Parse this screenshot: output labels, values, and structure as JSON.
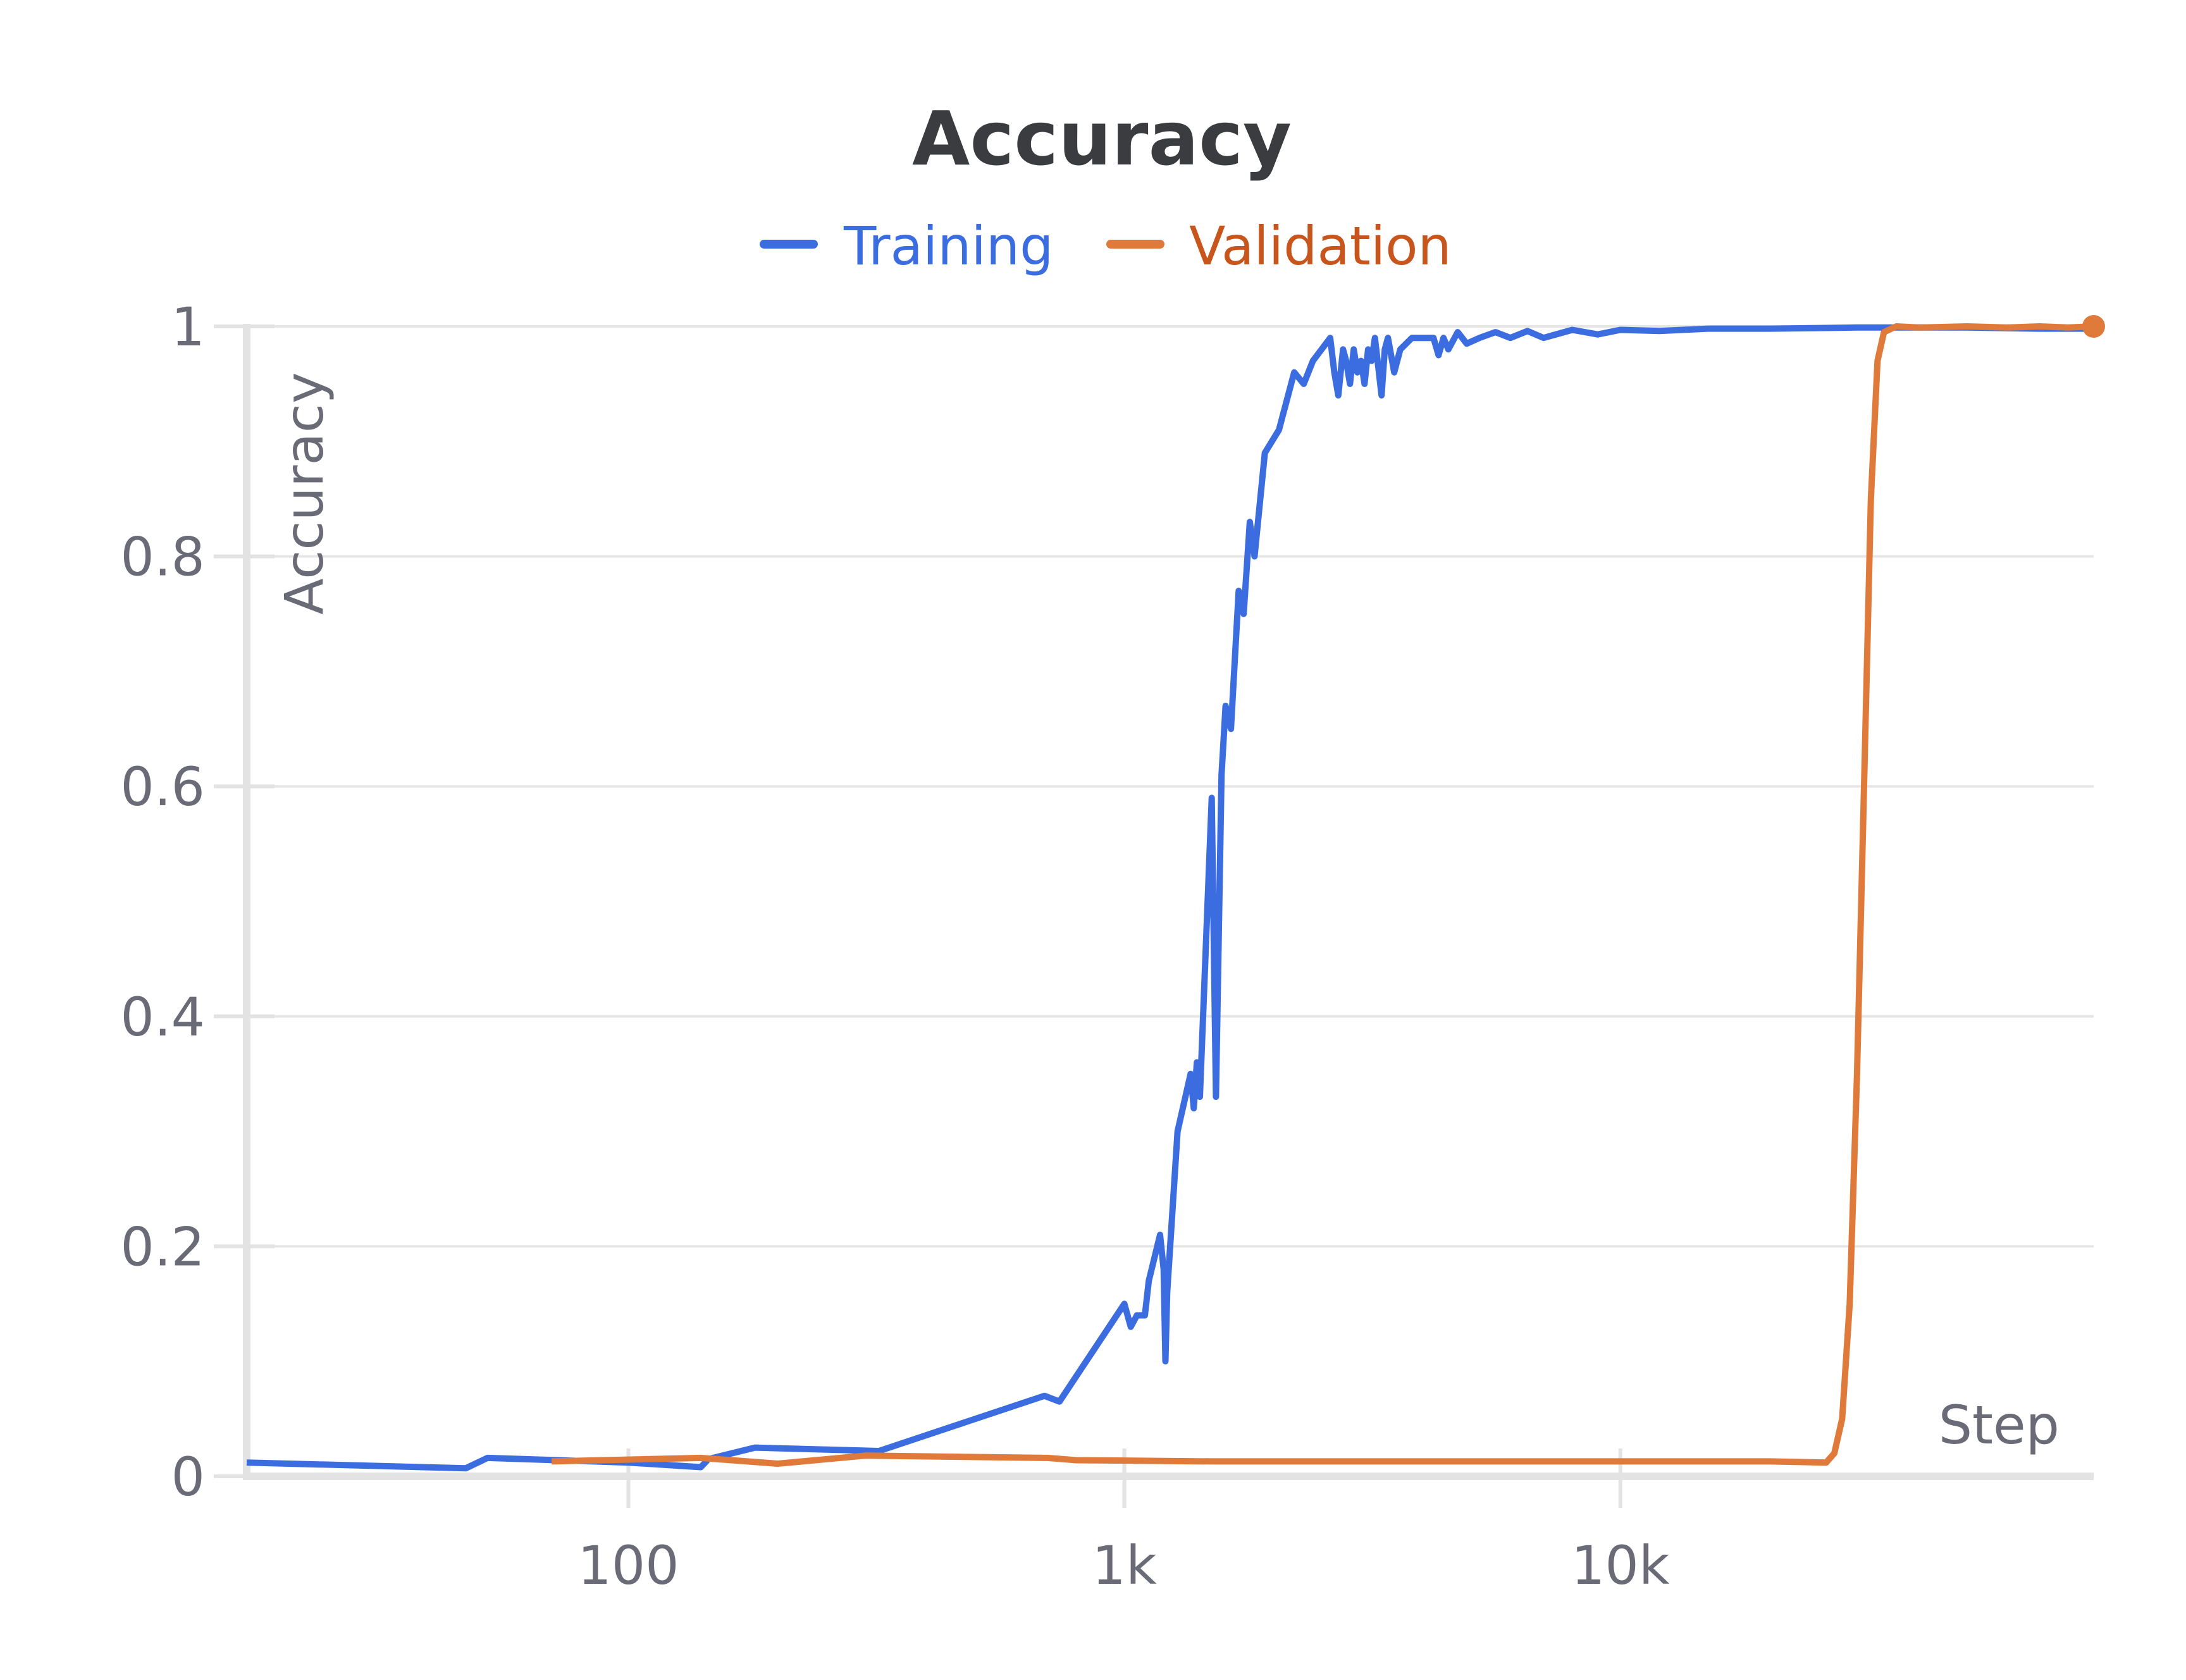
{
  "chart_data": {
    "type": "line",
    "title": "Accuracy",
    "xlabel": "Step",
    "ylabel": "Accuracy",
    "x_scale": "log",
    "xlim": [
      17,
      90000
    ],
    "ylim": [
      0,
      1
    ],
    "x_ticks": [
      {
        "value": 100,
        "label": "100"
      },
      {
        "value": 1000,
        "label": "1k"
      },
      {
        "value": 10000,
        "label": "10k"
      }
    ],
    "y_ticks": [
      {
        "value": 0,
        "label": "0"
      },
      {
        "value": 0.2,
        "label": "0.2"
      },
      {
        "value": 0.4,
        "label": "0.4"
      },
      {
        "value": 0.6,
        "label": "0.6"
      },
      {
        "value": 0.8,
        "label": "0.8"
      },
      {
        "value": 1,
        "label": "1"
      }
    ],
    "grid": true,
    "legend_position": "top-center",
    "series": [
      {
        "name": "Training",
        "color": "#3b6de0",
        "points": [
          [
            17,
            0.012
          ],
          [
            47,
            0.007
          ],
          [
            52,
            0.016
          ],
          [
            100,
            0.012
          ],
          [
            140,
            0.008
          ],
          [
            145,
            0.015
          ],
          [
            180,
            0.025
          ],
          [
            320,
            0.022
          ],
          [
            690,
            0.07
          ],
          [
            740,
            0.065
          ],
          [
            1000,
            0.15
          ],
          [
            1030,
            0.13
          ],
          [
            1060,
            0.14
          ],
          [
            1100,
            0.14
          ],
          [
            1120,
            0.17
          ],
          [
            1180,
            0.21
          ],
          [
            1200,
            0.18
          ],
          [
            1210,
            0.1
          ],
          [
            1220,
            0.16
          ],
          [
            1280,
            0.3
          ],
          [
            1360,
            0.35
          ],
          [
            1380,
            0.32
          ],
          [
            1400,
            0.36
          ],
          [
            1420,
            0.33
          ],
          [
            1500,
            0.59
          ],
          [
            1530,
            0.33
          ],
          [
            1570,
            0.61
          ],
          [
            1600,
            0.67
          ],
          [
            1640,
            0.65
          ],
          [
            1700,
            0.77
          ],
          [
            1740,
            0.75
          ],
          [
            1790,
            0.83
          ],
          [
            1830,
            0.8
          ],
          [
            1920,
            0.89
          ],
          [
            2050,
            0.91
          ],
          [
            2200,
            0.96
          ],
          [
            2300,
            0.95
          ],
          [
            2400,
            0.97
          ],
          [
            2600,
            0.99
          ],
          [
            2650,
            0.96
          ],
          [
            2700,
            0.94
          ],
          [
            2760,
            0.98
          ],
          [
            2800,
            0.97
          ],
          [
            2850,
            0.95
          ],
          [
            2900,
            0.98
          ],
          [
            2950,
            0.96
          ],
          [
            3000,
            0.97
          ],
          [
            3050,
            0.95
          ],
          [
            3100,
            0.98
          ],
          [
            3150,
            0.97
          ],
          [
            3200,
            0.99
          ],
          [
            3300,
            0.94
          ],
          [
            3350,
            0.98
          ],
          [
            3400,
            0.99
          ],
          [
            3500,
            0.96
          ],
          [
            3600,
            0.98
          ],
          [
            3800,
            0.99
          ],
          [
            4200,
            0.99
          ],
          [
            4300,
            0.975
          ],
          [
            4400,
            0.99
          ],
          [
            4500,
            0.98
          ],
          [
            4700,
            0.995
          ],
          [
            4900,
            0.985
          ],
          [
            5200,
            0.99
          ],
          [
            5600,
            0.995
          ],
          [
            6000,
            0.99
          ],
          [
            6500,
            0.996
          ],
          [
            7000,
            0.99
          ],
          [
            8000,
            0.997
          ],
          [
            9000,
            0.993
          ],
          [
            10000,
            0.997
          ],
          [
            12000,
            0.996
          ],
          [
            15000,
            0.998
          ],
          [
            20000,
            0.998
          ],
          [
            30000,
            0.999
          ],
          [
            50000,
            0.999
          ],
          [
            70000,
            0.998
          ],
          [
            90000,
            0.998
          ]
        ]
      },
      {
        "name": "Validation",
        "color": "#e07a3b",
        "points": [
          [
            70,
            0.013
          ],
          [
            140,
            0.016
          ],
          [
            200,
            0.011
          ],
          [
            300,
            0.018
          ],
          [
            700,
            0.016
          ],
          [
            800,
            0.014
          ],
          [
            1500,
            0.013
          ],
          [
            5000,
            0.013
          ],
          [
            10000,
            0.013
          ],
          [
            20000,
            0.013
          ],
          [
            26000,
            0.012
          ],
          [
            27000,
            0.02
          ],
          [
            28000,
            0.05
          ],
          [
            29000,
            0.15
          ],
          [
            30000,
            0.35
          ],
          [
            31000,
            0.6
          ],
          [
            32000,
            0.85
          ],
          [
            33000,
            0.97
          ],
          [
            34000,
            0.995
          ],
          [
            36000,
            1.0
          ],
          [
            40000,
            0.999
          ],
          [
            50000,
            1.0
          ],
          [
            60000,
            0.999
          ],
          [
            70000,
            1.0
          ],
          [
            80000,
            0.999
          ],
          [
            90000,
            1.0
          ]
        ]
      }
    ]
  }
}
